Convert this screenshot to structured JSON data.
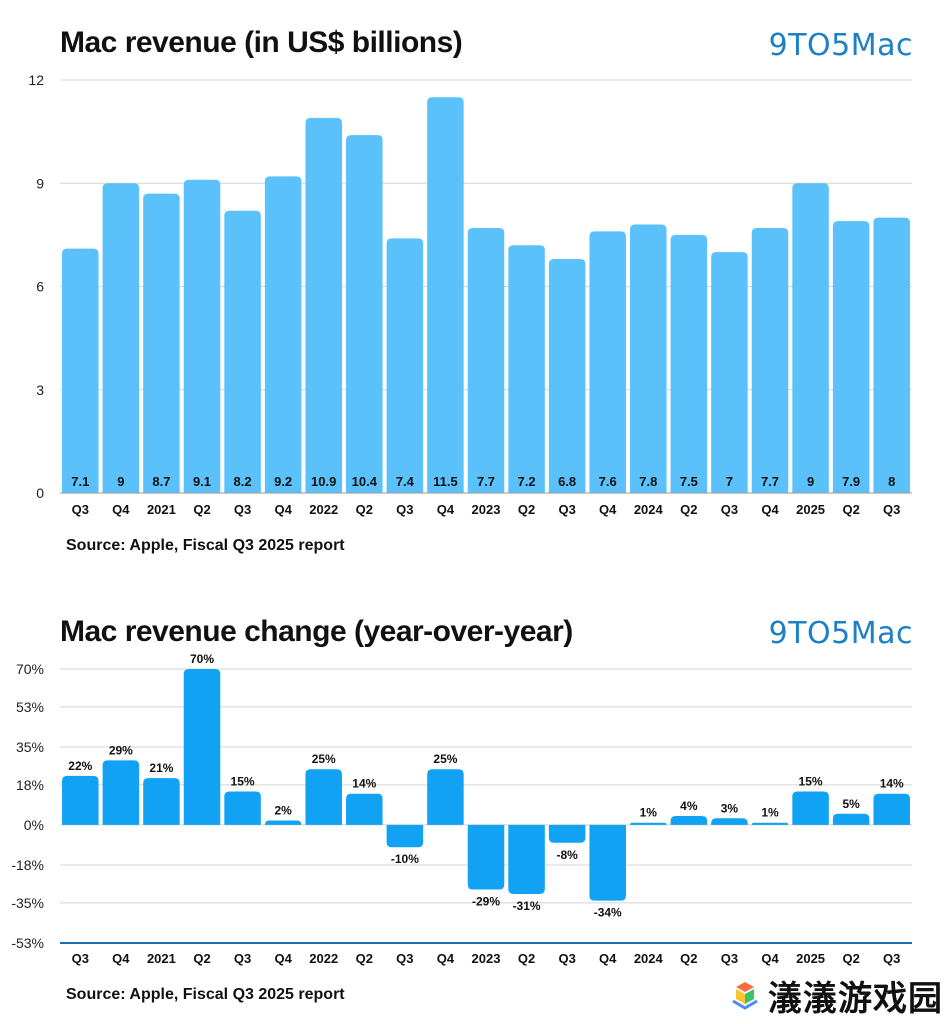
{
  "chart1": {
    "title": "Mac revenue (in US$ billions)",
    "brand": "9TO5Mac",
    "source": "Source: Apple, Fiscal Q3 2025 report"
  },
  "chart2": {
    "title": "Mac revenue change (year-over-year)",
    "brand": "9TO5Mac",
    "source": "Source: Apple, Fiscal Q3 2025 report"
  },
  "watermark": {
    "text": "𣿭𣿭游戏园"
  },
  "chart_data": [
    {
      "type": "bar",
      "title": "Mac revenue (in US$ billions)",
      "categories": [
        "Q3",
        "Q4",
        "2021",
        "Q2",
        "Q3",
        "Q4",
        "2022",
        "Q2",
        "Q3",
        "Q4",
        "2023",
        "Q2",
        "Q3",
        "Q4",
        "2024",
        "Q2",
        "Q3",
        "Q4",
        "2025",
        "Q2",
        "Q3"
      ],
      "values": [
        7.1,
        9,
        8.7,
        9.1,
        8.2,
        9.2,
        10.9,
        10.4,
        7.4,
        11.5,
        7.7,
        7.2,
        6.8,
        7.6,
        7.8,
        7.5,
        7,
        7.7,
        9,
        7.9,
        8
      ],
      "value_labels": [
        "7.1",
        "9",
        "8.7",
        "9.1",
        "8.2",
        "9.2",
        "10.9",
        "10.4",
        "7.4",
        "11.5",
        "7.7",
        "7.2",
        "6.8",
        "7.6",
        "7.8",
        "7.5",
        "7",
        "7.7",
        "9",
        "7.9",
        "8"
      ],
      "yticks": [
        0,
        3,
        6,
        9,
        12
      ],
      "ytick_labels": [
        "0",
        "3",
        "6",
        "9",
        "12"
      ],
      "ylim": [
        0,
        12
      ],
      "grid": true,
      "color": "#5ac1fb"
    },
    {
      "type": "bar",
      "title": "Mac revenue change (year-over-year)",
      "categories": [
        "Q3",
        "Q4",
        "2021",
        "Q2",
        "Q3",
        "Q4",
        "2022",
        "Q2",
        "Q3",
        "Q4",
        "2023",
        "Q2",
        "Q3",
        "Q4",
        "2024",
        "Q2",
        "Q3",
        "Q4",
        "2025",
        "Q2",
        "Q3"
      ],
      "values": [
        22,
        29,
        21,
        70,
        15,
        2,
        25,
        14,
        -10,
        25,
        -29,
        -31,
        -8,
        -34,
        1,
        4,
        3,
        1,
        15,
        5,
        14
      ],
      "value_labels": [
        "22%",
        "29%",
        "21%",
        "70%",
        "15%",
        "2%",
        "25%",
        "14%",
        "-10%",
        "25%",
        "-29%",
        "-31%",
        "-8%",
        "-34%",
        "1%",
        "4%",
        "3%",
        "1%",
        "15%",
        "5%",
        "14%"
      ],
      "yticks": [
        70,
        53,
        35,
        18,
        0,
        -18,
        -35,
        -53
      ],
      "ytick_labels": [
        "70%",
        "53%",
        "35%",
        "18%",
        "0%",
        "-18%",
        "-35%",
        "-53%"
      ],
      "ylim": [
        -53,
        70
      ],
      "grid": true,
      "color": "#11a2f4"
    }
  ]
}
